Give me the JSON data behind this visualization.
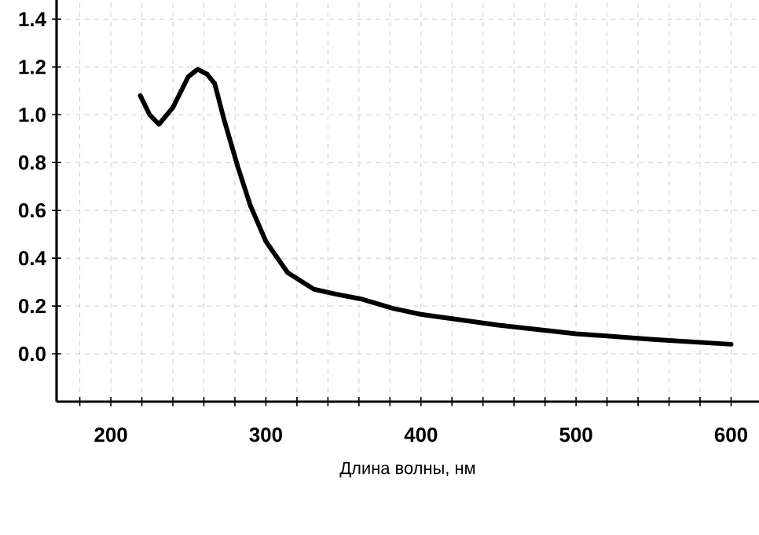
{
  "chart_data": {
    "type": "line",
    "xlabel": "Длина волны, нм",
    "x": [
      219,
      225,
      231,
      240,
      250,
      256,
      262,
      267,
      273,
      282,
      290,
      300,
      314,
      331,
      345,
      361,
      382,
      400,
      450,
      500,
      550,
      600
    ],
    "values": [
      1.08,
      1.0,
      0.96,
      1.03,
      1.16,
      1.19,
      1.17,
      1.13,
      0.98,
      0.78,
      0.62,
      0.47,
      0.34,
      0.27,
      0.25,
      0.23,
      0.19,
      0.165,
      0.12,
      0.084,
      0.06,
      0.04
    ],
    "color": "#000000",
    "line_style": "solid",
    "marker": "none",
    "grid": true,
    "xlim": [
      165,
      618
    ],
    "ylim": [
      -0.2,
      1.48
    ],
    "xticks": [
      {
        "value": 180,
        "label": null
      },
      200,
      {
        "value": 220,
        "label": null
      },
      {
        "value": 240,
        "label": null
      },
      {
        "value": 260,
        "label": null
      },
      {
        "value": 280,
        "label": null
      },
      300,
      {
        "value": 320,
        "label": null
      },
      {
        "value": 340,
        "label": null
      },
      {
        "value": 360,
        "label": null
      },
      {
        "value": 380,
        "label": null
      },
      400,
      {
        "value": 420,
        "label": null
      },
      {
        "value": 440,
        "label": null
      },
      {
        "value": 460,
        "label": null
      },
      {
        "value": 480,
        "label": null
      },
      500,
      {
        "value": 520,
        "label": null
      },
      {
        "value": 540,
        "label": null
      },
      {
        "value": 560,
        "label": null
      },
      {
        "value": 580,
        "label": null
      },
      600
    ],
    "yticks": [
      {
        "value": 0,
        "label": "0.0"
      },
      {
        "value": 0.2,
        "label": "0.2"
      },
      {
        "value": 0.4,
        "label": "0.4"
      },
      {
        "value": 0.6,
        "label": "0.6"
      },
      {
        "value": 0.8,
        "label": "0.8"
      },
      {
        "value": 1.0,
        "label": "1.0"
      },
      {
        "value": 1.2,
        "label": "1.2"
      },
      {
        "value": 1.4,
        "label": "1.4"
      }
    ]
  }
}
